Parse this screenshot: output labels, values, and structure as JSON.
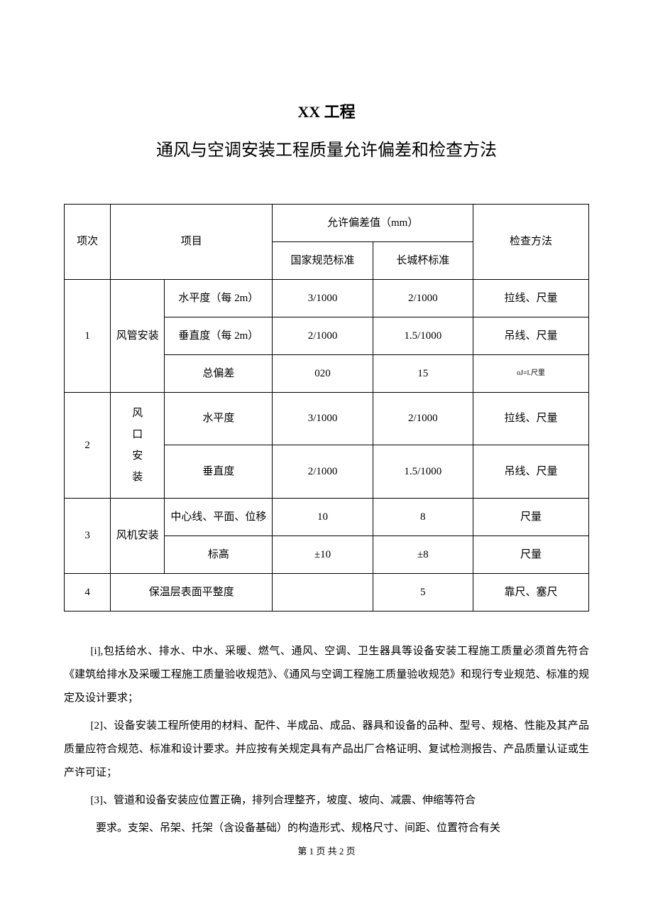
{
  "titles": {
    "main": "XX 工程",
    "sub": "通风与空调安装工程质量允许偏差和检查方法"
  },
  "headers": {
    "col_num": "项次",
    "col_item": "项目",
    "col_tolerance": "允许偏差值（mm）",
    "col_national": "国家规范标准",
    "col_greatwall": "长城杯标准",
    "col_method": "检查方法"
  },
  "rows": {
    "r1_num": "1",
    "r1_cat": "风管安装",
    "r1a_item": "水平度（每 2m）",
    "r1a_nat": "3/1000",
    "r1a_gw": "2/1000",
    "r1a_method": "拉线、尺量",
    "r1b_item": "垂直度（每 2m）",
    "r1b_nat": "2/1000",
    "r1b_gw": "1.5/1000",
    "r1b_method": "吊线、尺量",
    "r1c_item": "总偏差",
    "r1c_nat": "020",
    "r1c_gw": "15",
    "r1c_method": "oJ=l.尺里",
    "r2_num": "2",
    "r2_cat": "风\n口\n安\n装",
    "r2a_item": "水平度",
    "r2a_nat": "3/1000",
    "r2a_gw": "2/1000",
    "r2a_method": "拉线、尺量",
    "r2b_item": "垂直度",
    "r2b_nat": "2/1000",
    "r2b_gw": "1.5/1000",
    "r2b_method": "吊线、尺量",
    "r3_num": "3",
    "r3_cat": "风机安装",
    "r3a_item": "中心线、平面、位移",
    "r3a_nat": "10",
    "r3a_gw": "8",
    "r3a_method": "尺量",
    "r3b_item": "标高",
    "r3b_nat": "±10",
    "r3b_gw": "±8",
    "r3b_method": "尺量",
    "r4_num": "4",
    "r4_item": "保温层表面平整度",
    "r4_nat": "",
    "r4_gw": "5",
    "r4_method": "靠尺、塞尺"
  },
  "paragraphs": {
    "p1": "[i],包括给水、排水、中水、采暖、燃气、通风、空调、卫生器具等设备安装工程施工质量必须首先符合《建筑给排水及采暖工程施工质量验收规范》、《通风与空调工程施工质量验收规范》和现行专业规范、标准的规定及设计要求；",
    "p2": "[2]、设备安装工程所使用的材料、配件、半成品、成品、器具和设备的品种、型号、规格、性能及其产品质量应符合规范、标准和设计要求。并应按有关规定具有产品出厂合格证明、复试检测报告、产品质量认证或生产许可证；",
    "p3": "[3]、管道和设备安装应位置正确，排列合理整齐，坡度、坡向、减震、伸缩等符合",
    "p4": "要求。支架、吊架、托架（含设备基础）的构造形式、规格尺寸、间距、位置符合有关"
  },
  "footer": "第 1 页 共 2 页"
}
